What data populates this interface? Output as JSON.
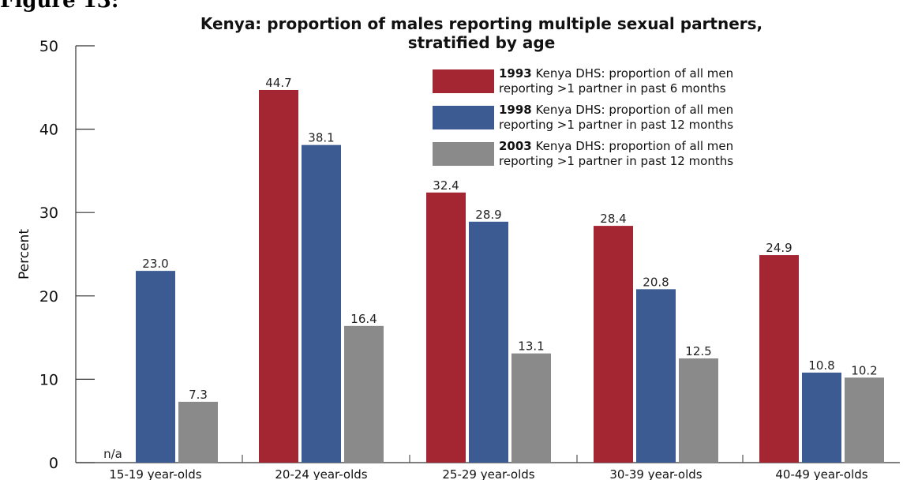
{
  "figure_label": "Figure 13:",
  "chart_data": {
    "type": "bar",
    "title_line1": "Kenya: proportion of males reporting multiple sexual partners,",
    "title_line2": "stratified by age",
    "ylabel": "Percent",
    "xlabel": "",
    "ylim": [
      0,
      50
    ],
    "yticks": [
      0,
      10,
      20,
      30,
      40,
      50
    ],
    "grid": false,
    "legend_position": "top-right",
    "categories": [
      "15-19 year-olds",
      "20-24 year-olds",
      "25-29 year-olds",
      "30-39 year-olds",
      "40-49 year-olds"
    ],
    "missing_label": "n/a",
    "series": [
      {
        "year": "1993",
        "name_rest_line1": "Kenya DHS: proportion of all men",
        "name_rest_line2": "reporting >1 partner in past 6 months",
        "color": "#a52633",
        "values": [
          null,
          44.7,
          32.4,
          28.4,
          24.9
        ],
        "labels": [
          "n/a",
          "44.7",
          "32.4",
          "28.4",
          "24.9"
        ]
      },
      {
        "year": "1998",
        "name_rest_line1": "Kenya DHS: proportion of all men",
        "name_rest_line2": "reporting >1 partner in past 12 months",
        "color": "#3b5b92",
        "values": [
          23.0,
          38.1,
          28.9,
          20.8,
          10.8
        ],
        "labels": [
          "23.0",
          "38.1",
          "28.9",
          "20.8",
          "10.8"
        ]
      },
      {
        "year": "2003",
        "name_rest_line1": "Kenya DHS: proportion of all men",
        "name_rest_line2": "reporting >1 partner in past 12 months",
        "color": "#8a8a8a",
        "values": [
          7.3,
          16.4,
          13.1,
          12.5,
          10.2
        ],
        "labels": [
          "7.3",
          "16.4",
          "13.1",
          "12.5",
          "10.2"
        ]
      }
    ]
  }
}
